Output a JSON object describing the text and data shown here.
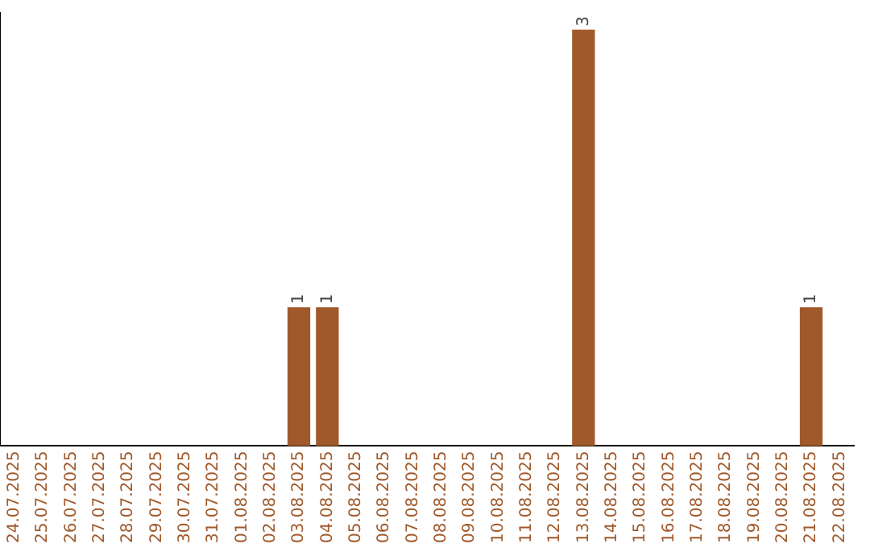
{
  "chart_data": {
    "type": "bar",
    "categories": [
      "24.07.2025",
      "25.07.2025",
      "26.07.2025",
      "27.07.2025",
      "28.07.2025",
      "29.07.2025",
      "30.07.2025",
      "31.07.2025",
      "01.08.2025",
      "02.08.2025",
      "03.08.2025",
      "04.08.2025",
      "05.08.2025",
      "06.08.2025",
      "07.08.2025",
      "08.08.2025",
      "09.08.2025",
      "10.08.2025",
      "11.08.2025",
      "12.08.2025",
      "13.08.2025",
      "14.08.2025",
      "15.08.2025",
      "16.08.2025",
      "17.08.2025",
      "18.08.2025",
      "19.08.2025",
      "20.08.2025",
      "21.08.2025",
      "22.08.2025"
    ],
    "values": [
      0,
      0,
      0,
      0,
      0,
      0,
      0,
      0,
      0,
      0,
      1,
      1,
      0,
      0,
      0,
      0,
      0,
      0,
      0,
      0,
      3,
      0,
      0,
      0,
      0,
      0,
      0,
      0,
      1,
      0
    ],
    "color": "#a0592a",
    "value_labels": [
      null,
      null,
      null,
      null,
      null,
      null,
      null,
      null,
      null,
      null,
      "1",
      "1",
      null,
      null,
      null,
      null,
      null,
      null,
      null,
      null,
      "3",
      null,
      null,
      null,
      null,
      null,
      null,
      null,
      "1",
      null
    ],
    "tick_labels": "x",
    "grid": false,
    "legend": false
  }
}
